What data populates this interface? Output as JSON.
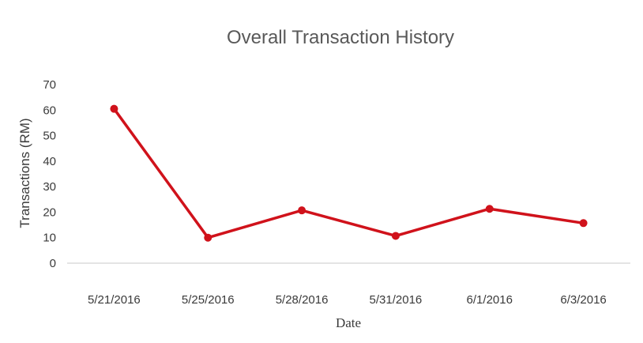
{
  "chart_data": {
    "type": "line",
    "title": "Overall Transaction History",
    "xlabel": "Date",
    "ylabel": "Transactions (RM)",
    "categories": [
      "5/21/2016",
      "5/25/2016",
      "5/28/2016",
      "5/31/2016",
      "6/1/2016",
      "6/3/2016"
    ],
    "series": [
      {
        "values": [
          60.5,
          10,
          20.7,
          10.7,
          21.3,
          15.7
        ]
      }
    ],
    "ylim": [
      0,
      70
    ],
    "yticks": [
      0,
      10,
      20,
      30,
      40,
      50,
      60,
      70
    ],
    "grid": false,
    "legend": "none",
    "colors": {
      "line": "#d0121b",
      "axis": "#c8c8c8"
    }
  }
}
